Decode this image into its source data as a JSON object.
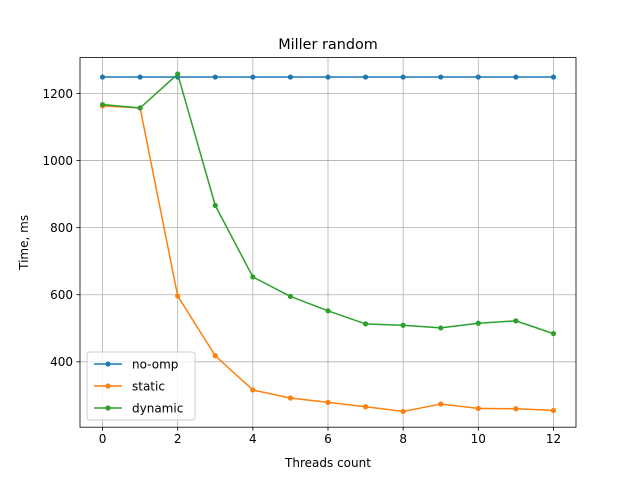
{
  "chart_data": {
    "type": "line",
    "title": "Miller random",
    "xlabel": "Threads count",
    "ylabel": "Time, ms",
    "xlim": [
      -0.6,
      12.6
    ],
    "ylim": [
      205,
      1307
    ],
    "xticks": [
      0,
      2,
      4,
      6,
      8,
      10,
      12
    ],
    "yticks": [
      400,
      600,
      800,
      1000,
      1200
    ],
    "grid": true,
    "legend_position": "lower-left",
    "x": [
      0,
      1,
      2,
      3,
      4,
      5,
      6,
      7,
      8,
      9,
      10,
      11,
      12
    ],
    "series": [
      {
        "name": "no-omp",
        "color": "#1f77b4",
        "values": [
          1249,
          1249,
          1249,
          1249,
          1249,
          1249,
          1249,
          1249,
          1249,
          1249,
          1249,
          1249,
          1249
        ]
      },
      {
        "name": "static",
        "color": "#ff7f0e",
        "values": [
          1163,
          1157,
          596,
          418,
          316,
          292,
          279,
          266,
          252,
          274,
          261,
          260,
          255
        ]
      },
      {
        "name": "dynamic",
        "color": "#2ca02c",
        "values": [
          1167,
          1157,
          1258,
          866,
          653,
          595,
          552,
          513,
          509,
          501,
          515,
          522,
          484
        ]
      }
    ]
  }
}
